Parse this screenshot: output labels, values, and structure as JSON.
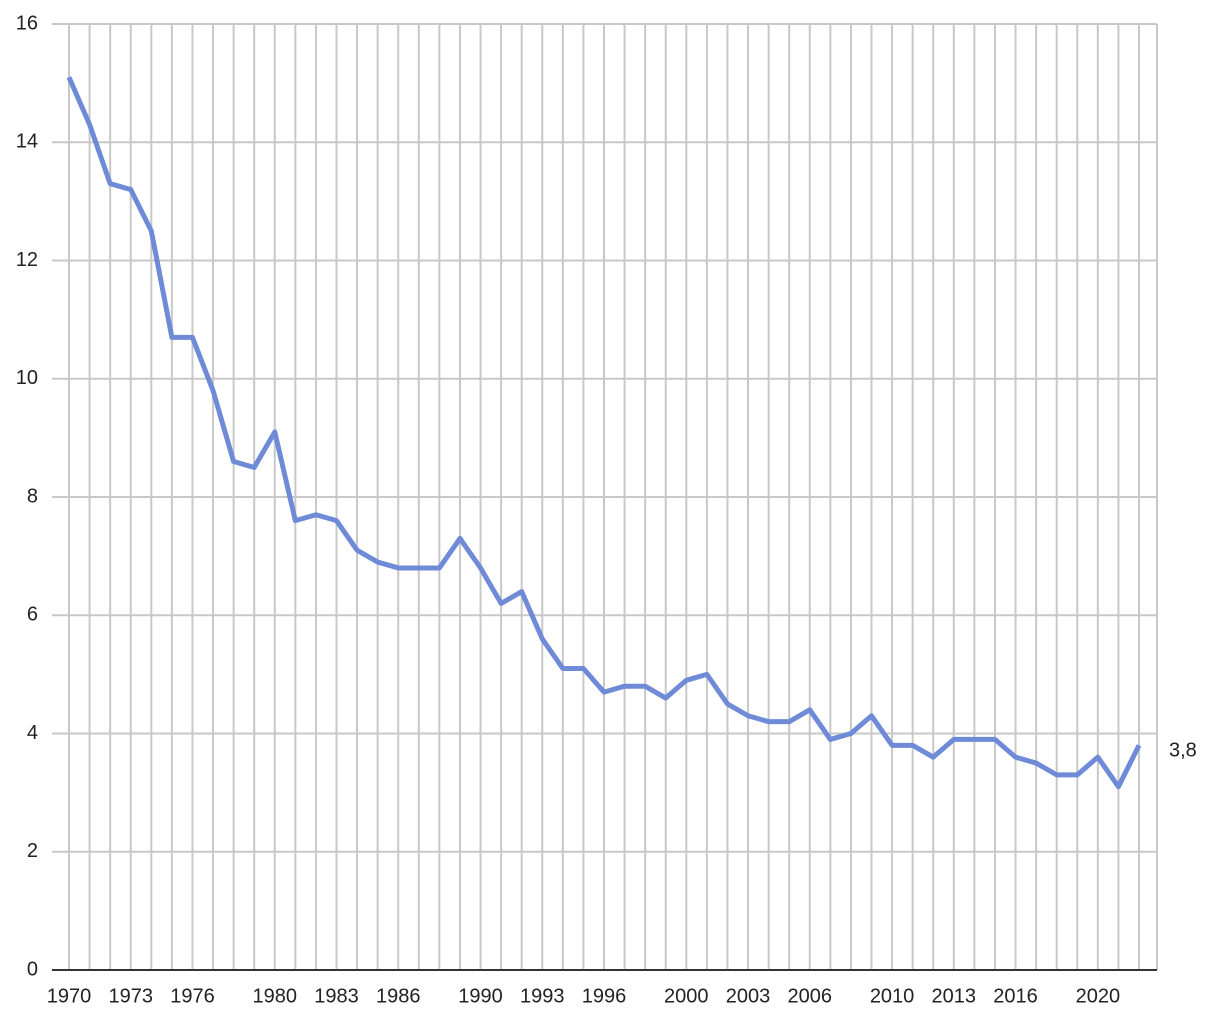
{
  "chart_data": {
    "type": "line",
    "categories": [
      "1970",
      null,
      null,
      "1973",
      null,
      null,
      "1976",
      null,
      null,
      null,
      "1980",
      null,
      null,
      "1983",
      null,
      null,
      "1986",
      null,
      null,
      null,
      "1990",
      null,
      null,
      "1993",
      null,
      null,
      "1996",
      null,
      null,
      null,
      "2000",
      null,
      null,
      "2003",
      null,
      null,
      "2006",
      null,
      null,
      null,
      "2010",
      null,
      null,
      "2013",
      null,
      null,
      "2016",
      null,
      null,
      null,
      "2020",
      null,
      null
    ],
    "values": [
      15.1,
      14.3,
      13.3,
      13.2,
      12.5,
      10.7,
      10.7,
      9.8,
      8.6,
      8.5,
      9.1,
      7.6,
      7.7,
      7.6,
      7.1,
      6.9,
      6.8,
      6.8,
      6.8,
      7.3,
      6.8,
      6.2,
      6.4,
      5.6,
      5.1,
      5.1,
      4.7,
      4.8,
      4.8,
      4.6,
      4.9,
      5.0,
      4.5,
      4.3,
      4.2,
      4.2,
      4.4,
      3.9,
      4.0,
      4.3,
      3.8,
      3.8,
      3.6,
      3.9,
      3.9,
      3.9,
      3.6,
      3.5,
      3.3,
      3.3,
      3.6,
      3.1,
      3.8
    ],
    "value_labels": [
      null,
      null,
      null,
      null,
      null,
      null,
      null,
      null,
      null,
      null,
      null,
      null,
      null,
      null,
      null,
      null,
      null,
      null,
      null,
      null,
      null,
      null,
      null,
      null,
      null,
      null,
      null,
      null,
      null,
      null,
      null,
      null,
      null,
      null,
      null,
      null,
      null,
      null,
      null,
      null,
      null,
      null,
      null,
      null,
      null,
      null,
      null,
      null,
      null,
      null,
      null,
      null,
      "3,8"
    ],
    "color": "#6f8bd8",
    "ylim": [
      0,
      16
    ],
    "yticks": [
      0,
      2,
      4,
      6,
      8,
      10,
      12,
      14,
      16
    ],
    "grid": true
  }
}
